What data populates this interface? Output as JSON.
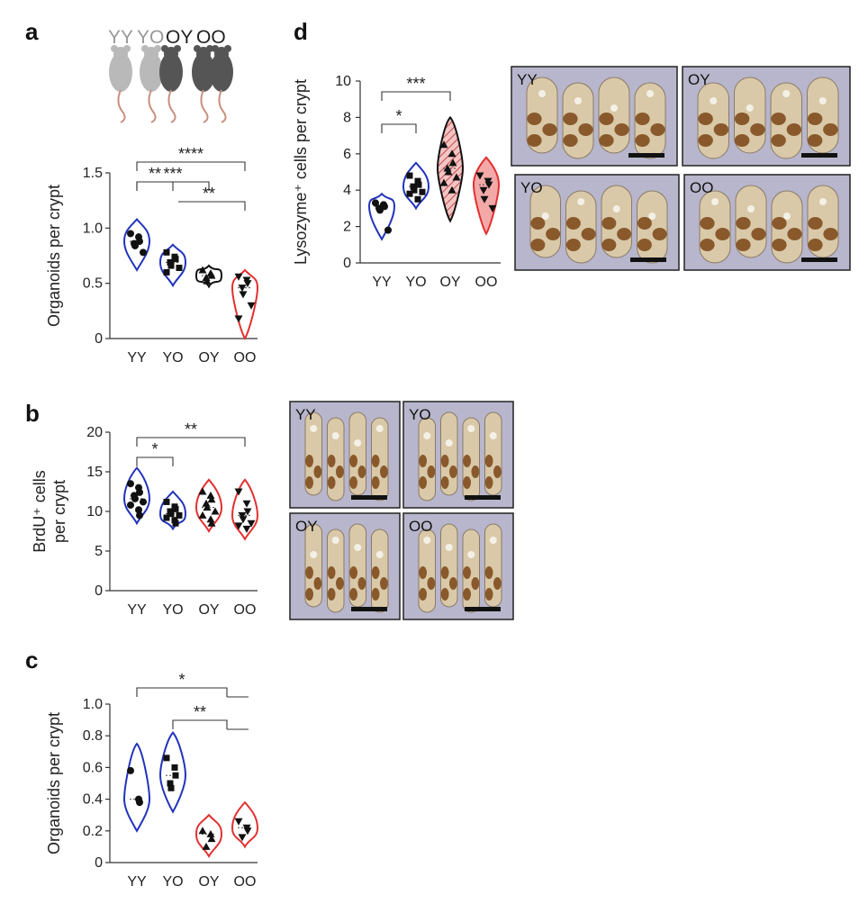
{
  "panels": {
    "a": {
      "label": "a",
      "mouse_labels": [
        "YY",
        "YO",
        "OY",
        "OO"
      ]
    },
    "b": {
      "label": "b"
    },
    "c": {
      "label": "c"
    },
    "d": {
      "label": "d"
    }
  },
  "colors": {
    "YY": "#2233bb",
    "YO": "#2233bb",
    "OY": "#111111",
    "OO": "#e23030",
    "lysozyme_OY_fill": "#d8a0a0",
    "lysozyme_OO_fill": "#f08a8a",
    "stain": "#7a4516",
    "counterstain": "#b8b6cc"
  },
  "micrographs": {
    "b": [
      "YY",
      "YO",
      "OY",
      "OO"
    ],
    "d": [
      "YY",
      "OY",
      "YO",
      "OO"
    ]
  },
  "chart_data": [
    {
      "id": "a",
      "type": "violin",
      "categories": [
        "YY",
        "YO",
        "OY",
        "OO"
      ],
      "ylabel": "Organoids per crypt",
      "ylim": [
        0,
        1.5
      ],
      "yticks": [
        "0",
        "0.5",
        "1.0",
        "1.5"
      ],
      "series": [
        {
          "category": "YY",
          "points": [
            0.95,
            0.92,
            0.88,
            0.86,
            0.84,
            0.78
          ],
          "range": [
            0.62,
            1.08
          ]
        },
        {
          "category": "YO",
          "points": [
            0.78,
            0.74,
            0.72,
            0.69,
            0.66,
            0.64,
            0.6
          ],
          "range": [
            0.48,
            0.85
          ]
        },
        {
          "category": "OY",
          "points": [
            0.62,
            0.59,
            0.57,
            0.55,
            0.52
          ],
          "range": [
            0.47,
            0.66
          ]
        },
        {
          "category": "OO",
          "points": [
            0.56,
            0.53,
            0.5,
            0.46,
            0.4,
            0.3,
            0.18
          ],
          "range": [
            0.0,
            0.62
          ]
        }
      ],
      "significance": [
        {
          "from": "YY",
          "to": "OO",
          "label": "****"
        },
        {
          "from": "YY",
          "to": "YO",
          "label": "**"
        },
        {
          "from": "YO",
          "to": "OO",
          "label": "**"
        },
        {
          "from": "YY",
          "to": "OY",
          "label": "***"
        }
      ]
    },
    {
      "id": "b",
      "type": "violin",
      "categories": [
        "YY",
        "YO",
        "OY",
        "OO"
      ],
      "ylabel": "BrdU⁺ cells per crypt",
      "ylim": [
        0,
        20
      ],
      "yticks": [
        "0",
        "5",
        "10",
        "15",
        "20"
      ],
      "series": [
        {
          "category": "YY",
          "points": [
            13.5,
            13,
            12.4,
            12,
            11.6,
            11.2,
            10.8,
            10.2,
            9.5
          ],
          "range": [
            8.5,
            15.5
          ]
        },
        {
          "category": "YO",
          "points": [
            11.2,
            10.6,
            10.3,
            10,
            9.7,
            9.5,
            9.2,
            8.9,
            8.5
          ],
          "range": [
            7.8,
            12.5
          ]
        },
        {
          "category": "OY",
          "points": [
            12.5,
            12,
            11.5,
            11,
            10.5,
            10,
            9.5,
            9,
            8.5
          ],
          "range": [
            7.5,
            14
          ]
        },
        {
          "category": "OO",
          "points": [
            12.5,
            11,
            10,
            9.5,
            9,
            8.5,
            8.2,
            7.8
          ],
          "range": [
            6.5,
            14
          ]
        }
      ],
      "significance": [
        {
          "from": "YY",
          "to": "OO",
          "label": "**"
        },
        {
          "from": "YY",
          "to": "YO",
          "label": "*"
        }
      ]
    },
    {
      "id": "c",
      "type": "violin",
      "categories": [
        "YY",
        "YO",
        "OY",
        "OO"
      ],
      "ylabel": "Organoids per crypt",
      "ylim": [
        0,
        1.0
      ],
      "yticks": [
        "0",
        "0.2",
        "0.4",
        "0.6",
        "0.8",
        "1.0"
      ],
      "series": [
        {
          "category": "YY",
          "points": [
            0.58,
            0.4,
            0.38
          ],
          "range": [
            0.2,
            0.75
          ]
        },
        {
          "category": "YO",
          "points": [
            0.66,
            0.6,
            0.55,
            0.5,
            0.47
          ],
          "range": [
            0.32,
            0.82
          ]
        },
        {
          "category": "OY",
          "points": [
            0.2,
            0.18,
            0.15,
            0.1
          ],
          "range": [
            0.04,
            0.3
          ]
        },
        {
          "category": "OO",
          "points": [
            0.26,
            0.22,
            0.2,
            0.16
          ],
          "range": [
            0.1,
            0.38
          ]
        }
      ],
      "significance": [
        {
          "from": "YY",
          "to": "OY,OO",
          "label": "*"
        },
        {
          "from": "YO",
          "to": "OY,OO",
          "label": "**"
        }
      ]
    },
    {
      "id": "d",
      "type": "violin",
      "categories": [
        "YY",
        "YO",
        "OY",
        "OO"
      ],
      "ylabel": "Lysozyme⁺ cells per crypt",
      "ylim": [
        0,
        10
      ],
      "yticks": [
        "0",
        "2",
        "4",
        "6",
        "8",
        "10"
      ],
      "series": [
        {
          "category": "YY",
          "points": [
            3.3,
            3.2,
            3.1,
            3.0,
            2.9,
            1.8
          ],
          "range": [
            1.3,
            3.8
          ]
        },
        {
          "category": "YO",
          "points": [
            4.8,
            4.5,
            4.3,
            4.2,
            4.0,
            3.9,
            3.8,
            3.5
          ],
          "range": [
            3.0,
            5.5
          ]
        },
        {
          "category": "OY",
          "points": [
            6.5,
            6.0,
            5.5,
            5.2,
            5.0,
            4.7,
            4.4,
            4.0
          ],
          "range": [
            2.3,
            8.0
          ]
        },
        {
          "category": "OO",
          "points": [
            4.8,
            4.5,
            4.3,
            4.0,
            3.5,
            3.0
          ],
          "range": [
            1.6,
            5.8
          ]
        }
      ],
      "significance": [
        {
          "from": "YY",
          "to": "OY",
          "label": "***"
        },
        {
          "from": "YY",
          "to": "YO",
          "label": "*"
        }
      ]
    }
  ]
}
